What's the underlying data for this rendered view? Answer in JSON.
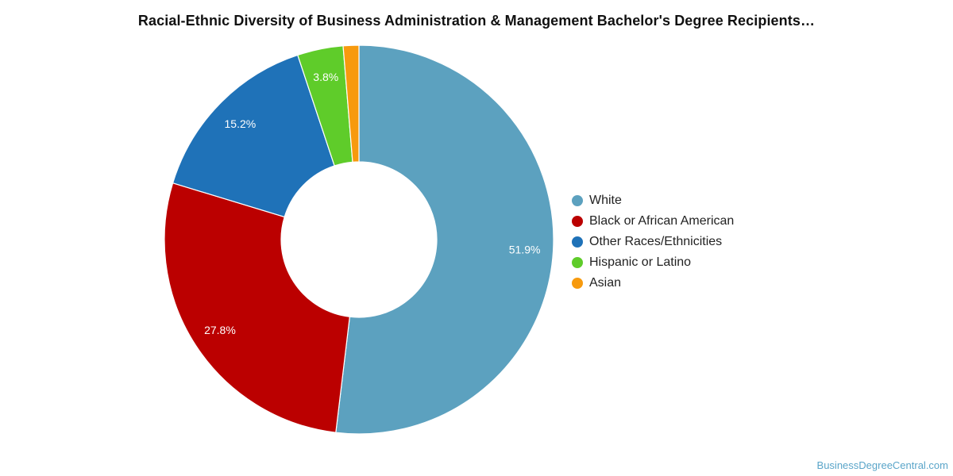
{
  "chart_data": {
    "type": "pie",
    "title": "Racial-Ethnic Diversity of Business Administration & Management Bachelor's Degree Recipients…",
    "donut": true,
    "legend_position": "right",
    "slices": [
      {
        "name": "White",
        "value": 51.9,
        "label": "51.9%",
        "color": "#5ca1bf"
      },
      {
        "name": "Black or African American",
        "value": 27.8,
        "label": "27.8%",
        "color": "#bb0000"
      },
      {
        "name": "Other Races/Ethnicities",
        "value": 15.2,
        "label": "15.2%",
        "color": "#1f72b8"
      },
      {
        "name": "Hispanic or Latino",
        "value": 3.8,
        "label": "3.8%",
        "color": "#5fcc2a"
      },
      {
        "name": "Asian",
        "value": 1.3,
        "label": "",
        "color": "#f79a0e"
      }
    ]
  },
  "watermark": "BusinessDegreeCentral.com"
}
